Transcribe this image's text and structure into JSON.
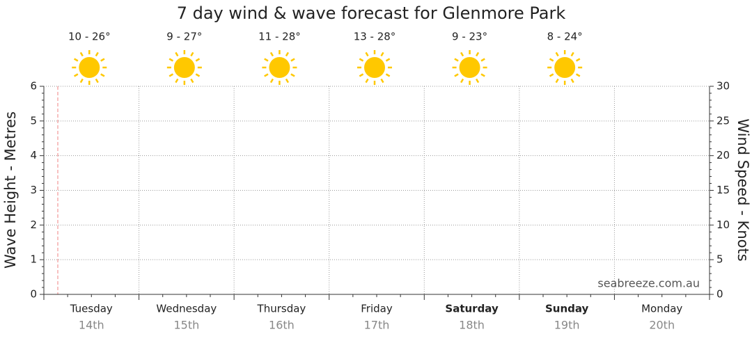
{
  "chart_data": {
    "type": "line",
    "title": "7 day wind & wave forecast for Glenmore Park",
    "ylabel": "Wave Height - Metres",
    "y2label": "Wind Speed - Knots",
    "categories": [
      "Tuesday",
      "Wednesday",
      "Thursday",
      "Friday",
      "Saturday",
      "Sunday",
      "Monday"
    ],
    "dates": [
      "14th",
      "15th",
      "16th",
      "17th",
      "18th",
      "19th",
      "20th"
    ],
    "bold": [
      false,
      false,
      false,
      false,
      true,
      true,
      false
    ],
    "temperatures": [
      "10 - 26°",
      "9 - 27°",
      "11 - 28°",
      "13 - 28°",
      "9 - 23°",
      "8 - 24°"
    ],
    "ylim": [
      0,
      6
    ],
    "yticks": [
      0,
      1,
      2,
      3,
      4,
      5,
      6
    ],
    "y2lim": [
      0,
      30
    ],
    "y2ticks": [
      0,
      5,
      10,
      15,
      20,
      25,
      30
    ],
    "grid": true,
    "series": [],
    "watermark": "seabreeze.com.au"
  }
}
